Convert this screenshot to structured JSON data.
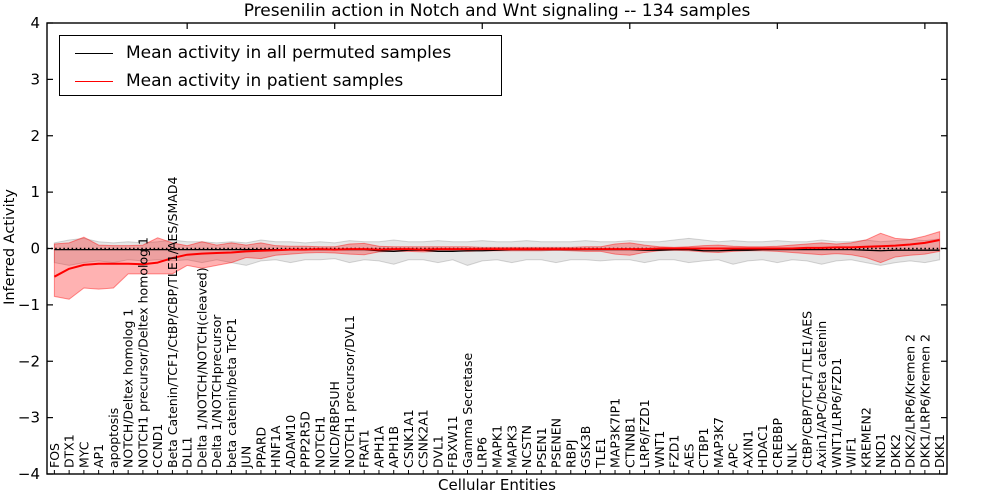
{
  "chart_data": {
    "type": "line",
    "title": "Presenilin action in Notch and Wnt signaling -- 134 samples",
    "xlabel": "Cellular Entities",
    "ylabel": "Inferred Activity",
    "ylim": [
      -4,
      4
    ],
    "yticks": [
      -4,
      -3,
      -2,
      -1,
      0,
      1,
      2,
      3,
      4
    ],
    "grid": false,
    "legend_position": "upper left",
    "zero_line_style": "dotted",
    "x_tick_label_rotation": 90,
    "categories": [
      "FOS",
      "DTX1",
      "MYC",
      "AP1",
      "apoptosis",
      "NOTCH/Deltex homolog 1",
      "NOTCH1 precursor/Deltex homolog 1",
      "CCND1",
      "Beta Catenin/TCF1/CtBP/CBP/TLE1/AES/SMAD4",
      "DLL1",
      "Delta 1/NOTCH/NOTCH(cleaved)",
      "Delta 1/NOTCHprecursor",
      "beta catenin/beta TrCP1",
      "JUN",
      "PPARD",
      "HNF1A",
      "ADAM10",
      "PPP2R5D",
      "NOTCH1",
      "NICD/RBPSUH",
      "NOTCH1 precursor/DVL1",
      "FRAT1",
      "APH1A",
      "APH1B",
      "CSNK1A1",
      "CSNK2A1",
      "DVL1",
      "FBXW11",
      "Gamma Secretase",
      "LRP6",
      "MAPK1",
      "MAPK3",
      "NCSTN",
      "PSEN1",
      "PSENEN",
      "RBPJ",
      "GSK3B",
      "TLE1",
      "MAP3K7IP1",
      "CTNNB1",
      "LRP6/FZD1",
      "WNT1",
      "FZD1",
      "AES",
      "CTBP1",
      "MAP3K7",
      "APC",
      "AXIN1",
      "HDAC1",
      "CREBBP",
      "NLK",
      "CtBP/CBP/TCF1/TLE1/AES",
      "Axin1/APC/beta catenin",
      "WNT1/LRP6/FZD1",
      "WIF1",
      "KREMEN2",
      "NKD1",
      "DKK2",
      "DKK2/LRP6/Kremen 2",
      "DKK1/LRP6/Kremen 2",
      "DKK1"
    ],
    "series": [
      {
        "name": "Mean activity in all permuted samples",
        "color": "#000000",
        "band_color": "#777777",
        "values": [
          -0.02,
          -0.02,
          -0.02,
          -0.02,
          -0.02,
          -0.02,
          -0.02,
          -0.02,
          -0.02,
          -0.02,
          -0.02,
          -0.02,
          -0.02,
          -0.02,
          -0.02,
          -0.02,
          -0.02,
          -0.02,
          -0.02,
          -0.02,
          -0.02,
          -0.02,
          -0.04,
          -0.05,
          -0.03,
          -0.03,
          -0.05,
          -0.05,
          -0.04,
          -0.04,
          -0.03,
          -0.02,
          -0.02,
          -0.02,
          -0.02,
          -0.02,
          -0.02,
          -0.02,
          -0.02,
          -0.02,
          -0.03,
          -0.03,
          -0.02,
          -0.02,
          -0.04,
          -0.04,
          -0.03,
          -0.03,
          -0.02,
          -0.02,
          -0.02,
          -0.02,
          -0.02,
          -0.02,
          -0.02,
          -0.03,
          -0.04,
          -0.03,
          -0.03,
          -0.03,
          -0.03
        ],
        "band_upper": [
          0.1,
          0.15,
          0.18,
          0.12,
          0.1,
          0.12,
          0.1,
          0.12,
          0.15,
          0.12,
          0.12,
          0.1,
          0.12,
          0.1,
          0.15,
          0.12,
          0.12,
          0.1,
          0.12,
          0.1,
          0.14,
          0.12,
          0.12,
          0.15,
          0.12,
          0.12,
          0.14,
          0.12,
          0.12,
          0.14,
          0.12,
          0.12,
          0.14,
          0.12,
          0.12,
          0.12,
          0.14,
          0.12,
          0.12,
          0.14,
          0.12,
          0.12,
          0.15,
          0.18,
          0.15,
          0.12,
          0.14,
          0.12,
          0.12,
          0.14,
          0.12,
          0.12,
          0.15,
          0.12,
          0.12,
          0.15,
          0.12,
          0.14,
          0.16,
          0.14,
          0.17
        ],
        "band_lower": [
          -0.25,
          -0.3,
          -0.25,
          -0.22,
          -0.25,
          -0.2,
          -0.22,
          -0.2,
          -0.22,
          -0.2,
          -0.25,
          -0.2,
          -0.25,
          -0.3,
          -0.22,
          -0.2,
          -0.25,
          -0.2,
          -0.2,
          -0.18,
          -0.25,
          -0.2,
          -0.22,
          -0.28,
          -0.2,
          -0.2,
          -0.25,
          -0.2,
          -0.3,
          -0.22,
          -0.2,
          -0.25,
          -0.2,
          -0.2,
          -0.25,
          -0.2,
          -0.2,
          -0.22,
          -0.2,
          -0.2,
          -0.25,
          -0.2,
          -0.2,
          -0.25,
          -0.22,
          -0.2,
          -0.28,
          -0.22,
          -0.2,
          -0.25,
          -0.2,
          -0.22,
          -0.28,
          -0.22,
          -0.2,
          -0.25,
          -0.3,
          -0.25,
          -0.22,
          -0.25,
          -0.2
        ]
      },
      {
        "name": "Mean activity in patient samples",
        "color": "#ff0000",
        "band_color": "#ff0000",
        "values": [
          -0.5,
          -0.36,
          -0.29,
          -0.27,
          -0.27,
          -0.27,
          -0.28,
          -0.25,
          -0.17,
          -0.11,
          -0.09,
          -0.08,
          -0.07,
          -0.05,
          -0.04,
          -0.03,
          -0.02,
          -0.02,
          -0.01,
          -0.02,
          -0.01,
          -0.01,
          -0.02,
          -0.01,
          -0.01,
          -0.02,
          -0.01,
          -0.01,
          -0.01,
          -0.01,
          -0.01,
          -0.01,
          -0.01,
          -0.01,
          -0.01,
          -0.01,
          -0.01,
          -0.01,
          -0.01,
          -0.01,
          -0.01,
          0.0,
          0.0,
          0.0,
          0.0,
          0.0,
          0.0,
          0.0,
          0.0,
          0.0,
          0.0,
          0.01,
          0.01,
          0.02,
          0.02,
          0.03,
          0.04,
          0.05,
          0.07,
          0.1,
          0.15
        ],
        "band_upper": [
          0.08,
          0.1,
          0.2,
          0.06,
          0.05,
          0.05,
          0.06,
          0.19,
          0.1,
          0.05,
          0.12,
          0.06,
          0.1,
          0.06,
          0.1,
          0.05,
          0.04,
          0.04,
          0.03,
          0.03,
          0.08,
          0.09,
          0.04,
          0.03,
          0.03,
          0.03,
          0.03,
          0.03,
          0.03,
          0.02,
          0.02,
          0.02,
          0.02,
          0.02,
          0.02,
          0.02,
          0.03,
          0.03,
          0.08,
          0.1,
          0.06,
          0.03,
          0.02,
          0.03,
          0.05,
          0.06,
          0.04,
          0.03,
          0.03,
          0.04,
          0.06,
          0.08,
          0.1,
          0.08,
          0.1,
          0.15,
          0.27,
          0.18,
          0.16,
          0.22,
          0.3
        ],
        "band_lower": [
          -0.85,
          -0.9,
          -0.7,
          -0.72,
          -0.7,
          -0.45,
          -0.45,
          -0.45,
          -0.45,
          -0.3,
          -0.35,
          -0.3,
          -0.25,
          -0.16,
          -0.18,
          -0.12,
          -0.1,
          -0.08,
          -0.07,
          -0.08,
          -0.1,
          -0.11,
          -0.06,
          -0.05,
          -0.05,
          -0.06,
          -0.05,
          -0.04,
          -0.05,
          -0.04,
          -0.04,
          -0.04,
          -0.04,
          -0.04,
          -0.03,
          -0.04,
          -0.05,
          -0.05,
          -0.1,
          -0.12,
          -0.07,
          -0.04,
          -0.03,
          -0.04,
          -0.06,
          -0.07,
          -0.05,
          -0.04,
          -0.04,
          -0.05,
          -0.07,
          -0.09,
          -0.11,
          -0.09,
          -0.11,
          -0.16,
          -0.25,
          -0.15,
          -0.12,
          -0.1,
          -0.05
        ]
      }
    ]
  }
}
